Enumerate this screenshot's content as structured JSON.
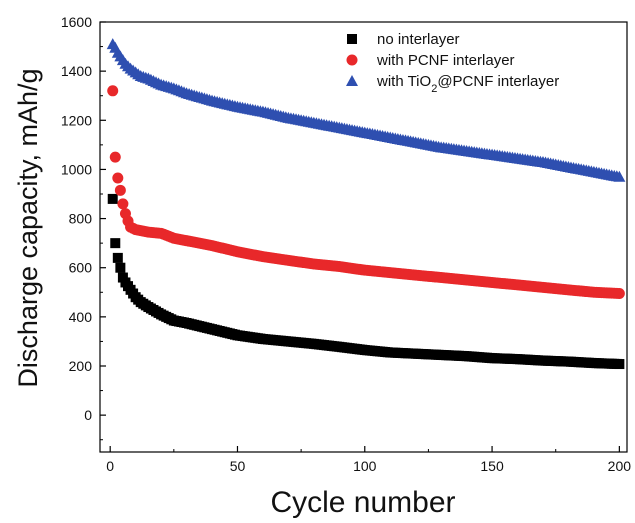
{
  "chart_data": {
    "type": "scatter",
    "xlabel": "Cycle number",
    "ylabel": "Discharge capacity, mAh/g",
    "xlim": [
      -4,
      203
    ],
    "ylim": [
      -150,
      1600
    ],
    "x_ticks": [
      0,
      50,
      100,
      150,
      200
    ],
    "y_ticks": [
      0,
      200,
      400,
      600,
      800,
      1000,
      1200,
      1400,
      1600
    ],
    "grid": false,
    "legend_position": "top-right",
    "series": [
      {
        "name": "no interlayer",
        "marker": "square",
        "color": "#000000",
        "x": [
          1,
          2,
          3,
          4,
          5,
          6,
          8,
          10,
          12,
          15,
          20,
          25,
          30,
          40,
          50,
          60,
          70,
          80,
          90,
          100,
          110,
          120,
          130,
          140,
          150,
          160,
          170,
          180,
          190,
          200
        ],
        "y": [
          880,
          700,
          640,
          600,
          560,
          540,
          510,
          480,
          460,
          440,
          410,
          385,
          375,
          350,
          325,
          310,
          300,
          290,
          278,
          265,
          255,
          250,
          245,
          240,
          232,
          228,
          222,
          218,
          212,
          208
        ]
      },
      {
        "name": "with PCNF interlayer",
        "marker": "circle",
        "color": "#e8282a",
        "x": [
          1,
          2,
          3,
          4,
          5,
          6,
          7,
          8,
          10,
          15,
          20,
          25,
          30,
          40,
          50,
          60,
          70,
          80,
          90,
          100,
          110,
          120,
          130,
          140,
          150,
          160,
          170,
          180,
          190,
          200
        ],
        "y": [
          1320,
          1050,
          965,
          915,
          860,
          820,
          790,
          765,
          755,
          745,
          740,
          720,
          710,
          690,
          665,
          645,
          630,
          615,
          605,
          590,
          580,
          570,
          560,
          550,
          540,
          530,
          520,
          510,
          500,
          495
        ]
      },
      {
        "name": "with TiO2@PCNF interlayer",
        "marker": "triangle",
        "color": "#2e4fb0",
        "x": [
          1,
          2,
          3,
          4,
          5,
          6,
          8,
          10,
          12,
          15,
          20,
          25,
          30,
          40,
          50,
          60,
          70,
          80,
          90,
          100,
          110,
          120,
          130,
          140,
          150,
          160,
          170,
          180,
          190,
          200
        ],
        "y": [
          1510,
          1495,
          1475,
          1460,
          1445,
          1430,
          1410,
          1395,
          1380,
          1370,
          1345,
          1330,
          1310,
          1280,
          1255,
          1235,
          1210,
          1190,
          1170,
          1150,
          1130,
          1110,
          1090,
          1075,
          1060,
          1045,
          1030,
          1010,
          990,
          970
        ]
      }
    ]
  }
}
